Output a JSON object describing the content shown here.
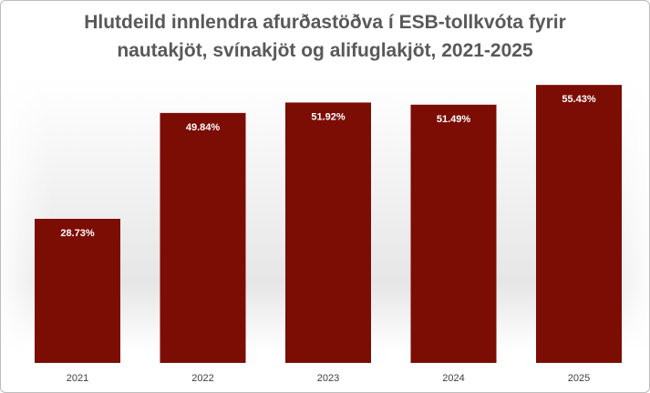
{
  "chart_data": {
    "type": "bar",
    "title_lines": [
      "Hlutdeild innlendra afurðastöðva í ESB-tollkvóta fyrir",
      "nautakjöt, svínakjöt og alifuglakjöt, 2021-2025"
    ],
    "categories": [
      "2021",
      "2022",
      "2023",
      "2024",
      "2025"
    ],
    "values": [
      28.73,
      49.84,
      51.92,
      51.49,
      55.43
    ],
    "data_labels": [
      "28.73%",
      "49.84%",
      "51.92%",
      "51.49%",
      "55.43%"
    ],
    "unit": "%",
    "ylim": [
      0,
      60
    ],
    "grid": false,
    "legend": "none",
    "bar_color": "#7b0d05",
    "background_color": "#ffffff"
  }
}
